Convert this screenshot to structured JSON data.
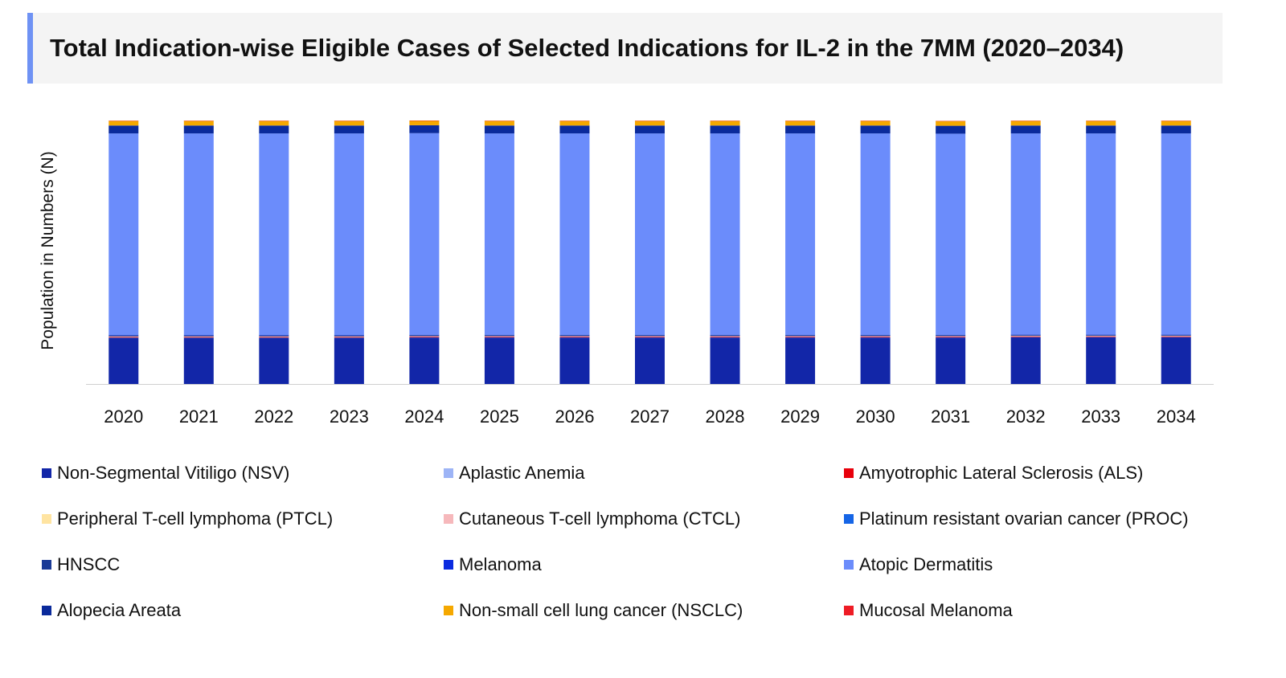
{
  "chart_data": {
    "type": "bar",
    "stacked": true,
    "title": "Total Indication-wise Eligible Cases of Selected Indications for IL-2 in the 7MM (2020–2034)",
    "xlabel": "",
    "ylabel": "Population in Numbers (N)",
    "y_ticks_shown": false,
    "grid": false,
    "legend_position": "bottom",
    "categories": [
      "2020",
      "2021",
      "2022",
      "2023",
      "2024",
      "2025",
      "2026",
      "2027",
      "2028",
      "2029",
      "2030",
      "2031",
      "2032",
      "2033",
      "2034"
    ],
    "series": [
      {
        "name": "Non-Segmental Vitiligo (NSV)",
        "color": "#1226a8",
        "values": [
          17.6,
          17.6,
          17.6,
          17.6,
          17.7,
          17.7,
          17.7,
          17.7,
          17.7,
          17.7,
          17.7,
          17.7,
          17.8,
          17.8,
          17.8
        ]
      },
      {
        "name": "Aplastic Anemia",
        "color": "#9db4f6",
        "values": [
          0.05,
          0.05,
          0.05,
          0.05,
          0.05,
          0.05,
          0.05,
          0.05,
          0.05,
          0.05,
          0.05,
          0.05,
          0.05,
          0.05,
          0.05
        ]
      },
      {
        "name": "Amyotrophic Lateral Sclerosis (ALS)",
        "color": "#e8000b",
        "values": [
          0.3,
          0.3,
          0.3,
          0.3,
          0.3,
          0.3,
          0.3,
          0.3,
          0.3,
          0.3,
          0.3,
          0.3,
          0.3,
          0.3,
          0.3
        ]
      },
      {
        "name": "Peripheral T-cell lymphoma (PTCL)",
        "color": "#ffe4a1",
        "values": [
          0.05,
          0.05,
          0.05,
          0.05,
          0.05,
          0.05,
          0.05,
          0.05,
          0.05,
          0.05,
          0.05,
          0.05,
          0.05,
          0.05,
          0.05
        ]
      },
      {
        "name": "Cutaneous T-cell lymphoma (CTCL)",
        "color": "#f6b8bb",
        "values": [
          0.1,
          0.1,
          0.1,
          0.1,
          0.1,
          0.1,
          0.1,
          0.1,
          0.1,
          0.1,
          0.1,
          0.1,
          0.1,
          0.1,
          0.1
        ]
      },
      {
        "name": "Platinum resistant ovarian cancer (PROC)",
        "color": "#1565e6",
        "values": [
          0.1,
          0.1,
          0.1,
          0.1,
          0.1,
          0.1,
          0.1,
          0.1,
          0.1,
          0.1,
          0.1,
          0.1,
          0.1,
          0.1,
          0.1
        ]
      },
      {
        "name": "HNSCC",
        "color": "#1a3a96",
        "values": [
          0.3,
          0.3,
          0.3,
          0.3,
          0.3,
          0.3,
          0.3,
          0.3,
          0.3,
          0.3,
          0.3,
          0.3,
          0.3,
          0.3,
          0.3
        ]
      },
      {
        "name": "Melanoma",
        "color": "#0b2be0",
        "values": [
          0.1,
          0.1,
          0.1,
          0.1,
          0.1,
          0.1,
          0.1,
          0.1,
          0.1,
          0.1,
          0.1,
          0.1,
          0.1,
          0.1,
          0.1
        ]
      },
      {
        "name": "Atopic Dermatitis",
        "color": "#6b8cfb",
        "values": [
          76.6,
          76.6,
          76.6,
          76.6,
          76.6,
          76.5,
          76.5,
          76.5,
          76.5,
          76.5,
          76.5,
          76.4,
          76.4,
          76.4,
          76.4
        ]
      },
      {
        "name": "Alopecia Areata",
        "color": "#0a2a9b",
        "values": [
          3.0,
          3.0,
          3.0,
          3.0,
          3.0,
          3.0,
          3.0,
          3.0,
          3.0,
          3.0,
          3.0,
          3.0,
          3.0,
          3.0,
          3.0
        ]
      },
      {
        "name": "Non-small cell lung cancer (NSCLC)",
        "color": "#f5a800",
        "values": [
          1.8,
          1.8,
          1.8,
          1.8,
          1.8,
          1.8,
          1.8,
          1.8,
          1.8,
          1.8,
          1.8,
          1.8,
          1.8,
          1.8,
          1.8
        ]
      },
      {
        "name": "Mucosal Melanoma",
        "color": "#ee1c25",
        "values": [
          0.01,
          0.01,
          0.01,
          0.01,
          0.01,
          0.01,
          0.01,
          0.01,
          0.01,
          0.01,
          0.01,
          0.01,
          0.01,
          0.01,
          0.01
        ]
      }
    ]
  }
}
